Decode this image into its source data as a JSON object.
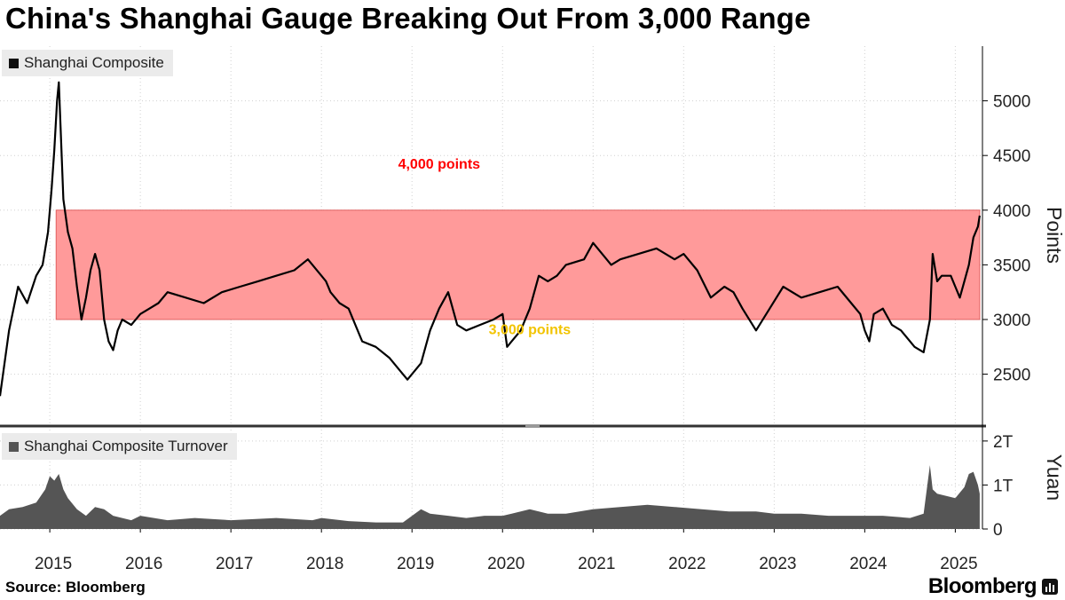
{
  "title": "China's Shanghai Gauge Breaking Out From 3,000 Range",
  "source": "Source: Bloomberg",
  "brand": "Bloomberg",
  "colors": {
    "line": "#000000",
    "band_fill": "#ff9a9a",
    "band_edge": "#e06060",
    "label_top": "#ff0000",
    "label_bottom": "#f2c400",
    "turnover": "#555555",
    "grid": "#d0d0d0"
  },
  "chart_data": [
    {
      "type": "line",
      "title": "Shanghai Composite",
      "legend": "Shanghai Composite",
      "ylabel": "Points",
      "ylim": [
        2050,
        5500
      ],
      "yticks": [
        2500,
        3000,
        3500,
        4000,
        4500,
        5000
      ],
      "xlim": [
        2014.45,
        2025.3
      ],
      "xticks": [
        2015,
        2016,
        2017,
        2018,
        2019,
        2020,
        2021,
        2022,
        2023,
        2024,
        2025
      ],
      "band": {
        "low": 3000,
        "high": 4000,
        "x_start": 2015.07,
        "x_end": 2025.27
      },
      "annotations": [
        {
          "text": "4,000 points",
          "x": 2019.3,
          "y": 4380,
          "color": "red"
        },
        {
          "text": "3,000 points",
          "x": 2020.3,
          "y": 2865,
          "color": "yellow"
        }
      ],
      "x": [
        2014.45,
        2014.55,
        2014.65,
        2014.75,
        2014.85,
        2014.92,
        2014.98,
        2015.02,
        2015.05,
        2015.08,
        2015.1,
        2015.15,
        2015.2,
        2015.25,
        2015.3,
        2015.35,
        2015.4,
        2015.45,
        2015.5,
        2015.55,
        2015.6,
        2015.65,
        2015.7,
        2015.75,
        2015.8,
        2015.9,
        2016.0,
        2016.1,
        2016.2,
        2016.3,
        2016.5,
        2016.7,
        2016.9,
        2017.1,
        2017.3,
        2017.5,
        2017.7,
        2017.85,
        2018.0,
        2018.05,
        2018.1,
        2018.2,
        2018.3,
        2018.45,
        2018.6,
        2018.75,
        2018.85,
        2018.95,
        2019.1,
        2019.2,
        2019.3,
        2019.4,
        2019.5,
        2019.6,
        2019.75,
        2019.9,
        2020.0,
        2020.05,
        2020.1,
        2020.2,
        2020.3,
        2020.4,
        2020.5,
        2020.6,
        2020.7,
        2020.9,
        2021.0,
        2021.1,
        2021.2,
        2021.3,
        2021.5,
        2021.7,
        2021.9,
        2022.0,
        2022.15,
        2022.3,
        2022.45,
        2022.55,
        2022.65,
        2022.8,
        2022.95,
        2023.1,
        2023.3,
        2023.5,
        2023.7,
        2023.85,
        2023.95,
        2024.0,
        2024.05,
        2024.1,
        2024.2,
        2024.3,
        2024.4,
        2024.55,
        2024.65,
        2024.72,
        2024.75,
        2024.78,
        2024.8,
        2024.85,
        2024.95,
        2025.0,
        2025.05,
        2025.1,
        2025.15,
        2025.2,
        2025.25,
        2025.27
      ],
      "values": [
        2300,
        2900,
        3300,
        3150,
        3400,
        3500,
        3800,
        4200,
        4550,
        5000,
        5170,
        4100,
        3800,
        3650,
        3300,
        3000,
        3200,
        3450,
        3600,
        3450,
        3000,
        2800,
        2720,
        2900,
        3000,
        2950,
        3050,
        3100,
        3150,
        3250,
        3200,
        3150,
        3250,
        3300,
        3350,
        3400,
        3450,
        3550,
        3400,
        3350,
        3250,
        3150,
        3100,
        2800,
        2750,
        2650,
        2550,
        2450,
        2600,
        2900,
        3100,
        3250,
        2950,
        2900,
        2950,
        3000,
        3050,
        2750,
        2800,
        2900,
        3100,
        3400,
        3350,
        3400,
        3500,
        3550,
        3700,
        3600,
        3500,
        3550,
        3600,
        3650,
        3550,
        3600,
        3450,
        3200,
        3300,
        3250,
        3100,
        2900,
        3100,
        3300,
        3200,
        3250,
        3300,
        3150,
        3050,
        2900,
        2800,
        3050,
        3100,
        2950,
        2900,
        2750,
        2700,
        3000,
        3600,
        3450,
        3350,
        3400,
        3400,
        3300,
        3200,
        3350,
        3500,
        3750,
        3850,
        3950
      ]
    },
    {
      "type": "area",
      "title": "Shanghai Composite Turnover",
      "legend": "Shanghai Composite Turnover",
      "ylabel": "Yuan",
      "ylim": [
        0,
        2.3
      ],
      "yticks": [
        0,
        1,
        2
      ],
      "ytick_labels": [
        "0",
        "1T",
        "2T"
      ],
      "xlim": [
        2014.45,
        2025.3
      ],
      "x": [
        2014.45,
        2014.55,
        2014.7,
        2014.85,
        2014.95,
        2015.0,
        2015.05,
        2015.1,
        2015.15,
        2015.2,
        2015.3,
        2015.4,
        2015.5,
        2015.6,
        2015.7,
        2015.8,
        2015.9,
        2016.0,
        2016.3,
        2016.6,
        2017.0,
        2017.5,
        2017.9,
        2018.0,
        2018.3,
        2018.6,
        2018.9,
        2019.1,
        2019.2,
        2019.4,
        2019.6,
        2019.8,
        2020.0,
        2020.1,
        2020.3,
        2020.5,
        2020.7,
        2021.0,
        2021.3,
        2021.6,
        2021.9,
        2022.2,
        2022.5,
        2022.8,
        2023.0,
        2023.3,
        2023.6,
        2023.9,
        2024.2,
        2024.5,
        2024.65,
        2024.72,
        2024.75,
        2024.8,
        2024.9,
        2025.0,
        2025.1,
        2025.15,
        2025.2,
        2025.25,
        2025.27
      ],
      "values": [
        0.3,
        0.45,
        0.5,
        0.6,
        0.9,
        1.2,
        1.1,
        1.25,
        0.9,
        0.7,
        0.45,
        0.3,
        0.5,
        0.45,
        0.3,
        0.25,
        0.2,
        0.3,
        0.2,
        0.25,
        0.2,
        0.25,
        0.2,
        0.25,
        0.18,
        0.15,
        0.15,
        0.45,
        0.35,
        0.3,
        0.25,
        0.3,
        0.3,
        0.35,
        0.45,
        0.35,
        0.35,
        0.45,
        0.5,
        0.55,
        0.5,
        0.45,
        0.4,
        0.4,
        0.35,
        0.35,
        0.3,
        0.3,
        0.3,
        0.25,
        0.35,
        1.45,
        0.9,
        0.8,
        0.75,
        0.7,
        0.95,
        1.25,
        1.3,
        1.0,
        0.8
      ]
    }
  ]
}
